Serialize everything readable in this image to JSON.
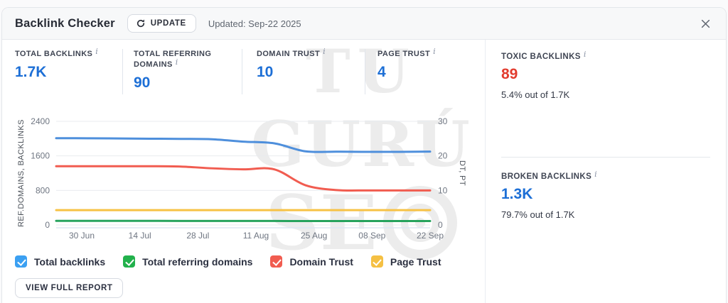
{
  "header": {
    "title": "Backlink Checker",
    "update_label": "UPDATE",
    "updated_text": "Updated: Sep-22 2025"
  },
  "colors": {
    "metric_value": "#1d6fd6",
    "toxic_value": "#e23b2e",
    "broken_value": "#1d6fd6"
  },
  "metrics": [
    {
      "label": "TOTAL BACKLINKS",
      "value": "1.7K"
    },
    {
      "label": "TOTAL REFERRING DOMAINS",
      "value": "90"
    },
    {
      "label": "DOMAIN TRUST",
      "value": "10"
    },
    {
      "label": "PAGE TRUST",
      "value": "4"
    }
  ],
  "aside": {
    "toxic": {
      "label": "TOXIC BACKLINKS",
      "value": "89",
      "subtext": "5.4% out of 1.7K"
    },
    "broken": {
      "label": "BROKEN BACKLINKS",
      "value": "1.3K",
      "subtext": "79.7% out of 1.7K"
    }
  },
  "legend": [
    {
      "label": "Total backlinks",
      "color": "#3ba0f2"
    },
    {
      "label": "Total referring domains",
      "color": "#22b14c"
    },
    {
      "label": "Domain Trust",
      "color": "#f15c50"
    },
    {
      "label": "Page Trust",
      "color": "#f5c043"
    }
  ],
  "view_report_label": "VIEW FULL REPORT",
  "watermark": {
    "line1": "TU",
    "line2": "GURÚ",
    "line3": "SE"
  },
  "chart_data": {
    "type": "line",
    "x_tick_labels": [
      "30 Jun",
      "14 Jul",
      "28 Jul",
      "11 Aug",
      "25 Aug",
      "08 Sep",
      "22 Sep"
    ],
    "left_axis": {
      "label": "REF.DOMAINS, BACKLINKS",
      "ticks": [
        0,
        800,
        1600,
        2400
      ],
      "range": [
        0,
        2400
      ]
    },
    "right_axis": {
      "label": "DT, PT",
      "ticks": [
        0,
        10,
        20,
        30
      ],
      "range": [
        0,
        30
      ]
    },
    "grid": true,
    "legend_position": "bottom",
    "series": [
      {
        "name": "Total backlinks",
        "axis": "left",
        "color": "#4e8fdc",
        "values": [
          2010,
          2008,
          2003,
          1998,
          1993,
          1985,
          1930,
          1890,
          1705,
          1698,
          1693,
          1693,
          1700
        ]
      },
      {
        "name": "Total referring domains",
        "axis": "left",
        "color": "#27a35d",
        "values": [
          95,
          95,
          95,
          94,
          93,
          93,
          92,
          92,
          90,
          90,
          90,
          90,
          90
        ]
      },
      {
        "name": "Domain Trust",
        "axis": "right",
        "color": "#f15c50",
        "values": [
          17,
          17,
          17,
          17,
          16.9,
          16.4,
          16.1,
          16.1,
          11.5,
          10.1,
          10,
          10,
          10
        ]
      },
      {
        "name": "Page Trust",
        "axis": "right",
        "color": "#f7c245",
        "values": [
          4.3,
          4.3,
          4.3,
          4.3,
          4.3,
          4.3,
          4.3,
          4.3,
          4.3,
          4.3,
          4.3,
          4.3,
          4.3
        ]
      }
    ]
  }
}
